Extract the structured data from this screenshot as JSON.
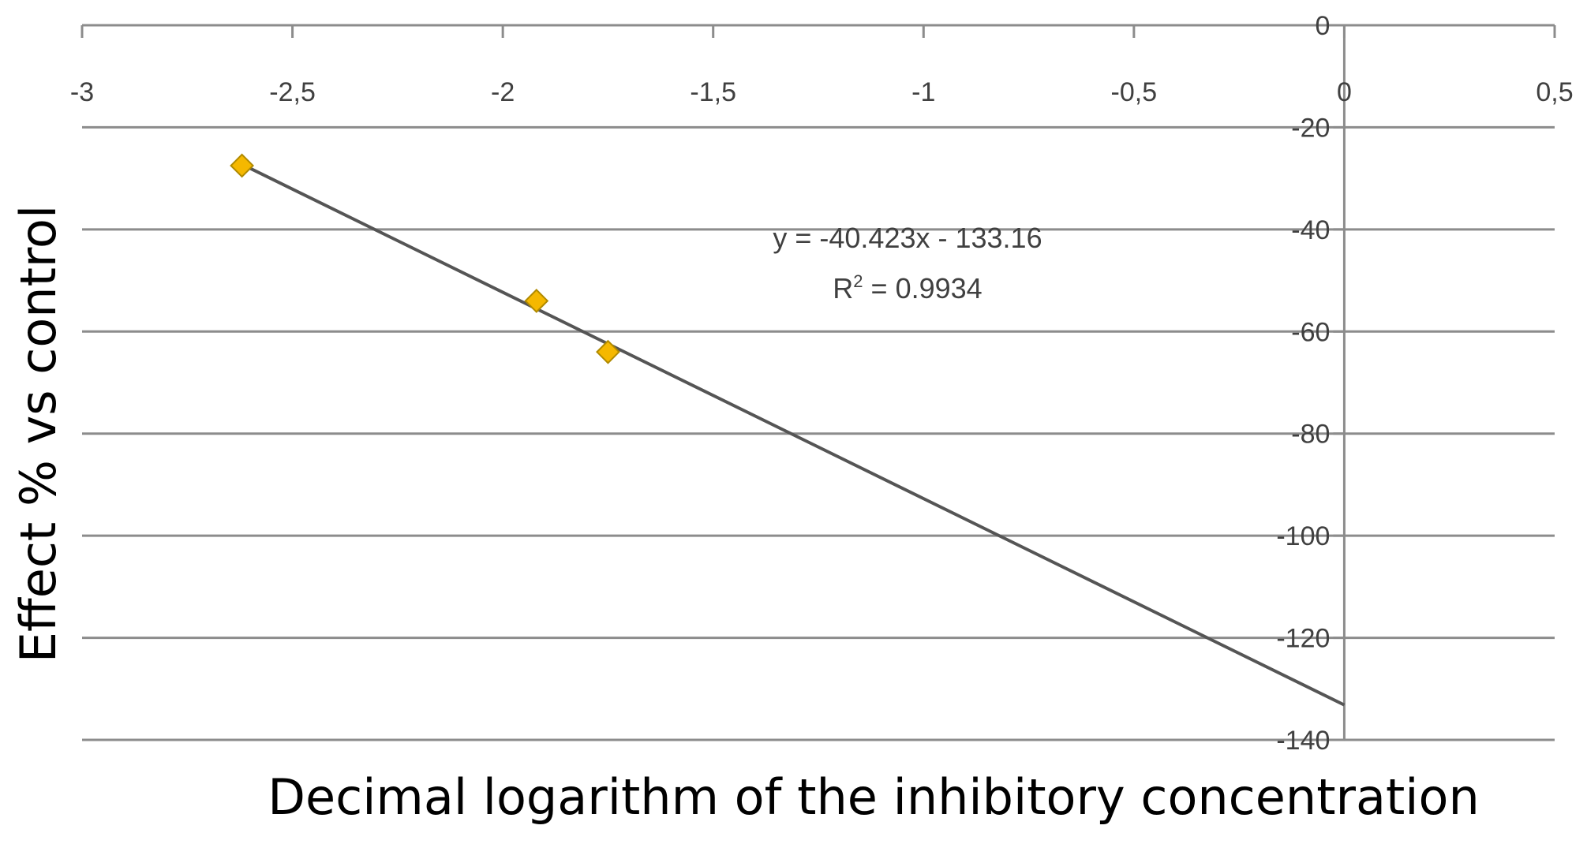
{
  "chart_data": {
    "type": "scatter",
    "title": "",
    "xlabel": "Decimal logarithm of the inhibitory concentration",
    "ylabel": "Effect % vs control",
    "xlim": [
      -3,
      0.5
    ],
    "ylim": [
      -140,
      0
    ],
    "x_ticks": [
      -3,
      -2.5,
      -2,
      -1.5,
      -1,
      -0.5,
      0,
      0.5
    ],
    "x_tick_labels": [
      "-3",
      "-2,5",
      "-2",
      "-1,5",
      "-1",
      "-0,5",
      "0",
      "0,5"
    ],
    "y_ticks": [
      0,
      -20,
      -40,
      -60,
      -80,
      -100,
      -120,
      -140
    ],
    "y_tick_labels": [
      "0",
      "-20",
      "-40",
      "-60",
      "-80",
      "-100",
      "-120",
      "-140"
    ],
    "grid": "horizontal",
    "series": [
      {
        "points": [
          {
            "x": -2.62,
            "y": -27.5
          },
          {
            "x": -1.92,
            "y": -54
          },
          {
            "x": -1.75,
            "y": -64
          }
        ],
        "marker": "diamond",
        "color": "#F5B800"
      }
    ],
    "trendline": {
      "slope": -40.423,
      "intercept": -133.16,
      "x_range": [
        -2.62,
        0
      ],
      "color": "#555555"
    },
    "annotations": {
      "equation": "y = -40.423x - 133.16",
      "r2_prefix": "R",
      "r2_exp": "2",
      "r2_value": " = 0.9934"
    }
  }
}
